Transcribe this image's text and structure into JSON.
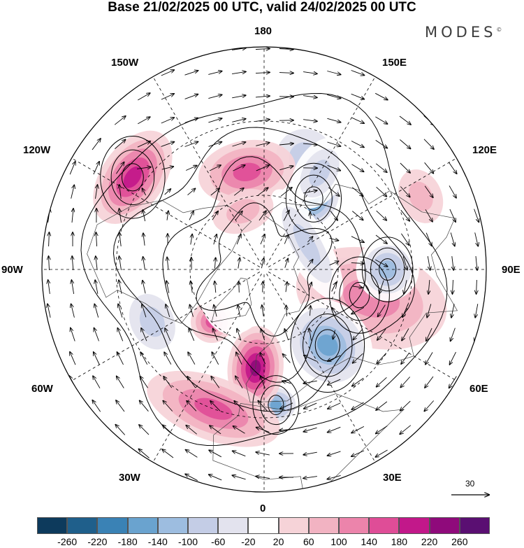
{
  "title": "Base 21/02/2025 00 UTC, valid 24/02/2025 00 UTC",
  "brand": "MODES",
  "brand_mark": "©",
  "map_labels": {
    "lon_180": "180",
    "lon_150w": "150W",
    "lon_150e": "150E",
    "lon_120w": "120W",
    "lon_120e": "120E",
    "lon_90w": "90W",
    "lon_90e": "90E",
    "lon_60w": "60W",
    "lon_60e": "60E",
    "lon_30w": "30W",
    "lon_30e": "30E",
    "lon_0": "0"
  },
  "vector_scale": "30",
  "colorbar": {
    "ticks": [
      "-260",
      "-220",
      "-180",
      "-140",
      "-100",
      "-60",
      "-20",
      "20",
      "60",
      "100",
      "140",
      "180",
      "220",
      "260"
    ],
    "colors": [
      "#0d3a5c",
      "#1f5f8b",
      "#3a82b5",
      "#6aa3cf",
      "#9dbde0",
      "#c4cde6",
      "#e3e3ee",
      "#ffffff",
      "#f6d3d8",
      "#f2b3c2",
      "#ec84ab",
      "#df4d97",
      "#c2188a",
      "#8f0a7b",
      "#5a0f72"
    ]
  },
  "anomalies": [
    {
      "lat": 55,
      "lon": 145,
      "rx": 40,
      "ry": 50,
      "v": -230
    },
    {
      "lat": 42,
      "lon": 160,
      "rx": 60,
      "ry": 60,
      "v": -110
    },
    {
      "lat": 50,
      "lon": -170,
      "rx": 70,
      "ry": 45,
      "v": 150
    },
    {
      "lat": 25,
      "lon": -125,
      "rx": 75,
      "ry": 45,
      "v": 180
    },
    {
      "lat": 50,
      "lon": 75,
      "rx": 65,
      "ry": 90,
      "v": 180
    },
    {
      "lat": 45,
      "lon": 75,
      "rx": 70,
      "ry": 110,
      "v": 100
    },
    {
      "lat": 50,
      "lon": 40,
      "rx": 60,
      "ry": 70,
      "v": -170
    },
    {
      "lat": 40,
      "lon": 90,
      "rx": 45,
      "ry": 45,
      "v": -130
    },
    {
      "lat": 35,
      "lon": 5,
      "rx": 35,
      "ry": 30,
      "v": -180
    },
    {
      "lat": 50,
      "lon": -5,
      "rx": 40,
      "ry": 60,
      "v": 200
    },
    {
      "lat": 30,
      "lon": -20,
      "rx": 100,
      "ry": 45,
      "v": 150
    },
    {
      "lat": 40,
      "lon": -65,
      "rx": 60,
      "ry": 45,
      "v": -110
    },
    {
      "lat": 60,
      "lon": -45,
      "rx": 30,
      "ry": 30,
      "v": 120
    },
    {
      "lat": 70,
      "lon": 120,
      "rx": 90,
      "ry": 30,
      "v": -80
    },
    {
      "lat": 20,
      "lon": 115,
      "rx": 40,
      "ry": 30,
      "v": 70
    },
    {
      "lat": 45,
      "lon": 150,
      "rx": 35,
      "ry": 55,
      "v": -90
    },
    {
      "lat": 80,
      "lon": -100,
      "rx": 100,
      "ry": 60,
      "v": -30
    },
    {
      "lat": 65,
      "lon": -160,
      "rx": 45,
      "ry": 30,
      "v": 50
    }
  ],
  "cyclones": [
    {
      "lat": 55,
      "lon": 145,
      "r": 24
    },
    {
      "lat": 50,
      "lon": 40,
      "r": 32
    },
    {
      "lat": 35,
      "lon": 5,
      "r": 20
    },
    {
      "lat": 40,
      "lon": 90,
      "r": 22
    },
    {
      "lat": 25,
      "lon": -125,
      "r": 28
    },
    {
      "lat": 50,
      "lon": 75,
      "r": 26
    }
  ]
}
